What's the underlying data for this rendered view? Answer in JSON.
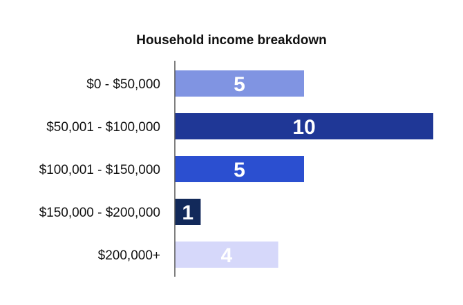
{
  "chart_data": {
    "type": "bar",
    "orientation": "horizontal",
    "title": "Household income breakdown",
    "xlabel": "",
    "ylabel": "",
    "categories": [
      "$0 - $50,000",
      "$50,001 - $100,000",
      "$100,001 - $150,000",
      "$150,000 - $200,000",
      "$200,000+"
    ],
    "values": [
      5,
      10,
      5,
      1,
      4
    ],
    "colors": [
      "#8094e2",
      "#1f3796",
      "#2b4fd0",
      "#12295a",
      "#d6d8fa"
    ],
    "xlim": [
      0,
      10
    ],
    "grid": false,
    "legend": "none",
    "data_labels": true
  }
}
